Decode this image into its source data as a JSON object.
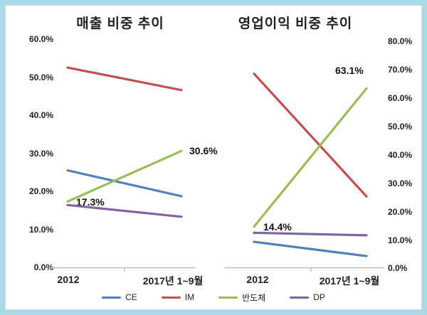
{
  "frame": {
    "border_color": "#A9D8E6",
    "background": "#FFFFFF",
    "axis_line_color": "#BFBFBF",
    "text_color": "#1F1F1F"
  },
  "legend": {
    "items": [
      {
        "label": "CE",
        "color": "#4F81BD"
      },
      {
        "label": "IM",
        "color": "#C0504D"
      },
      {
        "label": "반도체",
        "color": "#9BBB59"
      },
      {
        "label": "DP",
        "color": "#8064A2"
      }
    ]
  },
  "chart_data": [
    {
      "type": "line",
      "title": "매출 비중 추이",
      "categories": [
        "2012",
        "2017년 1~9월"
      ],
      "yticks": [
        "60.0%",
        "50.0%",
        "40.0%",
        "30.0%",
        "20.0%",
        "10.0%",
        "0.0%"
      ],
      "ylim": [
        0,
        60
      ],
      "ytick_step": 10,
      "grid": false,
      "axis_side": "left",
      "legend_position": "bottom",
      "series": [
        {
          "name": "CE",
          "color": "#4F81BD",
          "values": [
            25.5,
            18.7
          ]
        },
        {
          "name": "IM",
          "color": "#C0504D",
          "values": [
            52.5,
            46.6
          ]
        },
        {
          "name": "반도체",
          "color": "#9BBB59",
          "values": [
            17.3,
            30.6
          ]
        },
        {
          "name": "DP",
          "color": "#8064A2",
          "values": [
            16.4,
            13.3
          ]
        }
      ],
      "annotations": [
        {
          "text": "17.3%",
          "series": "반도체",
          "point": "2012"
        },
        {
          "text": "30.6%",
          "series": "반도체",
          "point": "2017년 1~9월"
        }
      ]
    },
    {
      "type": "line",
      "title": "영업이익 비중 추이",
      "categories": [
        "2012",
        "2017년 1~9월"
      ],
      "yticks": [
        "80.0%",
        "70.0%",
        "60.0%",
        "50.0%",
        "40.0%",
        "30.0%",
        "20.0%",
        "10.0%",
        "0.0%"
      ],
      "ylim": [
        0,
        80
      ],
      "ytick_step": 10,
      "grid": false,
      "axis_side": "right",
      "legend_position": "bottom",
      "series": [
        {
          "name": "CE",
          "color": "#4F81BD",
          "values": [
            9.0,
            4.0
          ]
        },
        {
          "name": "IM",
          "color": "#C0504D",
          "values": [
            68.3,
            25.0
          ]
        },
        {
          "name": "반도체",
          "color": "#9BBB59",
          "values": [
            14.4,
            63.1
          ]
        },
        {
          "name": "DP",
          "color": "#8064A2",
          "values": [
            12.2,
            11.3
          ]
        }
      ],
      "annotations": [
        {
          "text": "14.4%",
          "series": "반도체",
          "point": "2012"
        },
        {
          "text": "63.1%",
          "series": "반도체",
          "point": "2017년 1~9월"
        }
      ]
    }
  ]
}
